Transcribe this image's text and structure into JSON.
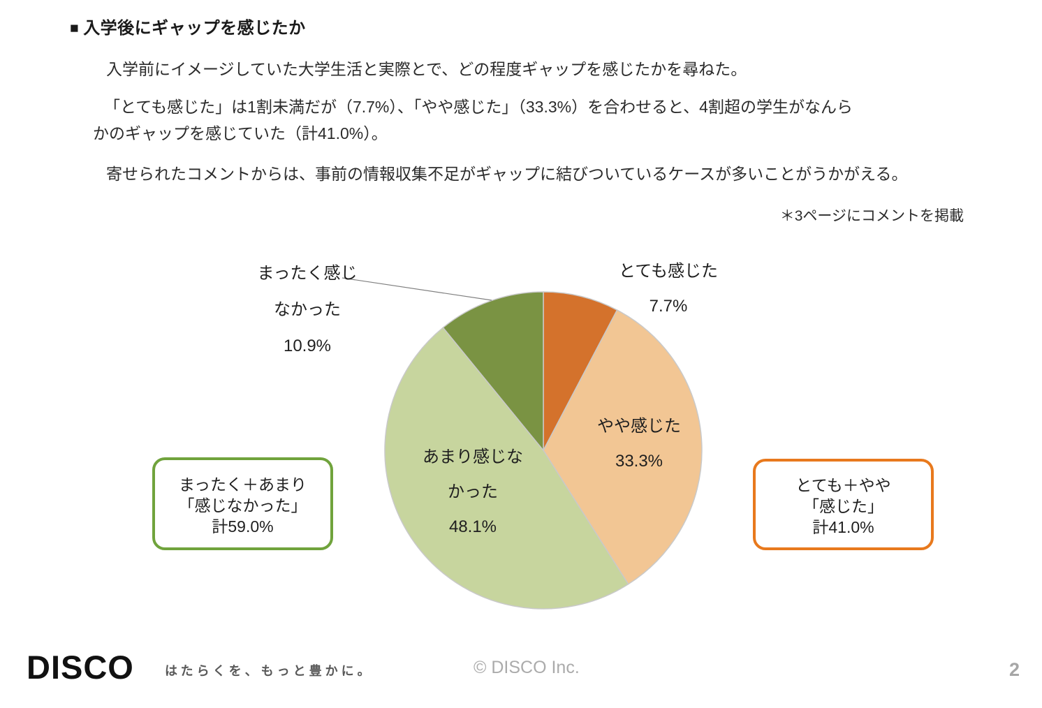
{
  "page": {
    "title": {
      "marker": "■",
      "text": "入学後にギャップを感じたか"
    },
    "paragraphs": {
      "p1": "入学前にイメージしていた大学生活と実際とで、どの程度ギャップを感じたかを尋ねた。",
      "p2_line1": "「とても感じた」は1割未満だが（7.7%）、「やや感じた」（33.3%）を合わせると、4割超の学生がなんら",
      "p2_line2": "かのギャップを感じていた（計41.0%）。",
      "p3": "寄せられたコメントからは、事前の情報収集不足がギャップに結びついているケースが多いことがうかがえる。"
    },
    "note": "＊3ページにコメントを掲載"
  },
  "chart_data": {
    "type": "pie",
    "title": "入学後にギャップを感じたか",
    "direction": "clockwise",
    "start_angle": "top",
    "slice_border_color": "#c9c9c9",
    "slices": [
      {
        "id": "totemo",
        "label": "とても感じた",
        "value": 7.7,
        "display": "7.7%",
        "color": "#D4722C",
        "label_placement": "outside-top-right",
        "label_lines": [
          "とても感じた",
          "7.7%"
        ]
      },
      {
        "id": "yaya",
        "label": "やや感じた",
        "value": 33.3,
        "display": "33.3%",
        "color": "#F2C694",
        "label_placement": "inside",
        "label_lines": [
          "やや感じた",
          "33.3%"
        ]
      },
      {
        "id": "amari",
        "label": "あまり感じなかった",
        "value": 48.1,
        "display": "48.1%",
        "color": "#C7D59E",
        "label_placement": "inside",
        "label_lines": [
          "あまり感じな",
          "かった",
          "48.1%"
        ]
      },
      {
        "id": "mattaku",
        "label": "まったく感じなかった",
        "value": 10.9,
        "display": "10.9%",
        "color": "#7A9343",
        "label_placement": "outside-top-left-with-leader",
        "label_lines": [
          "まったく感じ",
          "なかった",
          "10.9%"
        ]
      }
    ]
  },
  "callouts": {
    "negative": {
      "border_color": "#70A33C",
      "lines": [
        "まったく＋あまり",
        "「感じなかった」",
        "計59.0%"
      ]
    },
    "positive": {
      "border_color": "#E8791D",
      "lines": [
        "とても＋やや",
        "「感じた」",
        "計41.0%"
      ]
    }
  },
  "footer": {
    "logo": "DISCO",
    "tagline": "はたらくを、もっと豊かに。",
    "copyright": "© DISCO Inc.",
    "page_number": "2"
  }
}
